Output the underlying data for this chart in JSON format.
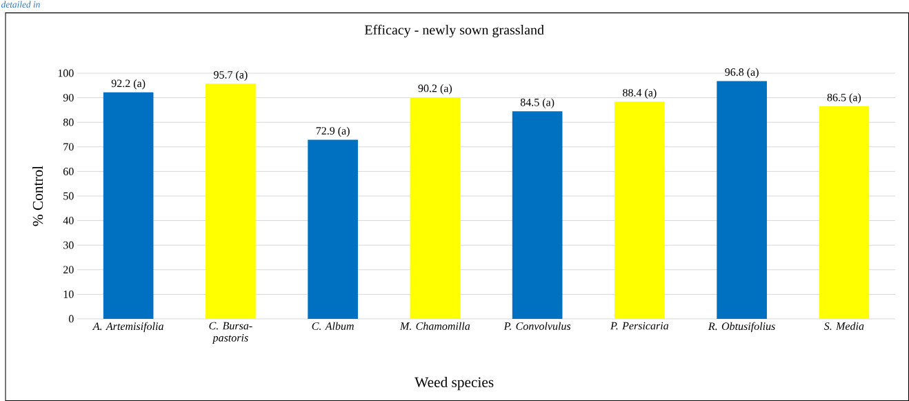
{
  "chart_data": {
    "type": "bar",
    "title": "Efficacy - newly sown grassland",
    "xlabel": "Weed species",
    "ylabel": "% Control",
    "categories": [
      "A. Artemisifolia",
      "C. Bursa-pastoris",
      "C. Album",
      "M. Chamomilla",
      "P. Convolvulus",
      "P. Persicaria",
      "R. Obtusifolius",
      "S. Media"
    ],
    "values": [
      92.2,
      95.7,
      72.9,
      90.2,
      84.5,
      88.4,
      96.8,
      86.5
    ],
    "value_labels": [
      "92.2 (a)",
      "95.7 (a)",
      "72.9 (a)",
      "90.2 (a)",
      "84.5 (a)",
      "88.4 (a)",
      "96.8 (a)",
      "86.5 (a)"
    ],
    "colors": [
      "#0070c0",
      "#ffff00",
      "#0070c0",
      "#ffff00",
      "#0070c0",
      "#ffff00",
      "#0070c0",
      "#ffff00"
    ],
    "ylim": [
      0,
      100
    ],
    "yticks": [
      0,
      10,
      20,
      30,
      40,
      50,
      60,
      70,
      80,
      90,
      100
    ],
    "grid": "y",
    "annotations": [
      "detailed in"
    ]
  }
}
